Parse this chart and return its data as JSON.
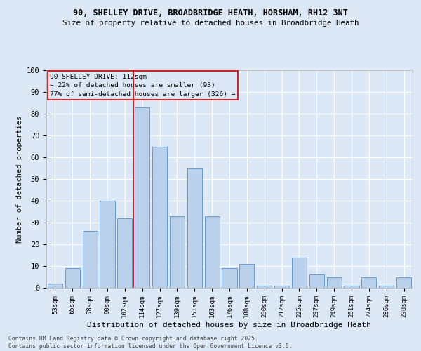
{
  "title1": "90, SHELLEY DRIVE, BROADBRIDGE HEATH, HORSHAM, RH12 3NT",
  "title2": "Size of property relative to detached houses in Broadbridge Heath",
  "xlabel": "Distribution of detached houses by size in Broadbridge Heath",
  "ylabel": "Number of detached properties",
  "categories": [
    "53sqm",
    "65sqm",
    "78sqm",
    "90sqm",
    "102sqm",
    "114sqm",
    "127sqm",
    "139sqm",
    "151sqm",
    "163sqm",
    "176sqm",
    "188sqm",
    "200sqm",
    "212sqm",
    "225sqm",
    "237sqm",
    "249sqm",
    "261sqm",
    "274sqm",
    "286sqm",
    "298sqm"
  ],
  "values": [
    2,
    9,
    26,
    40,
    32,
    83,
    65,
    33,
    55,
    33,
    9,
    11,
    1,
    1,
    14,
    6,
    5,
    1,
    5,
    1,
    5
  ],
  "bar_color": "#b8d0ea",
  "bar_edge_color": "#6699cc",
  "bg_color": "#dce8f5",
  "grid_color": "#ffffff",
  "annotation_box_color": "#cc0000",
  "property_line_color": "#cc0000",
  "annotation_text_line1": "90 SHELLEY DRIVE: 112sqm",
  "annotation_text_line2": "← 22% of detached houses are smaller (93)",
  "annotation_text_line3": "77% of semi-detached houses are larger (326) →",
  "footer1": "Contains HM Land Registry data © Crown copyright and database right 2025.",
  "footer2": "Contains public sector information licensed under the Open Government Licence v3.0.",
  "ylim": [
    0,
    100
  ],
  "yticks": [
    0,
    10,
    20,
    30,
    40,
    50,
    60,
    70,
    80,
    90,
    100
  ]
}
